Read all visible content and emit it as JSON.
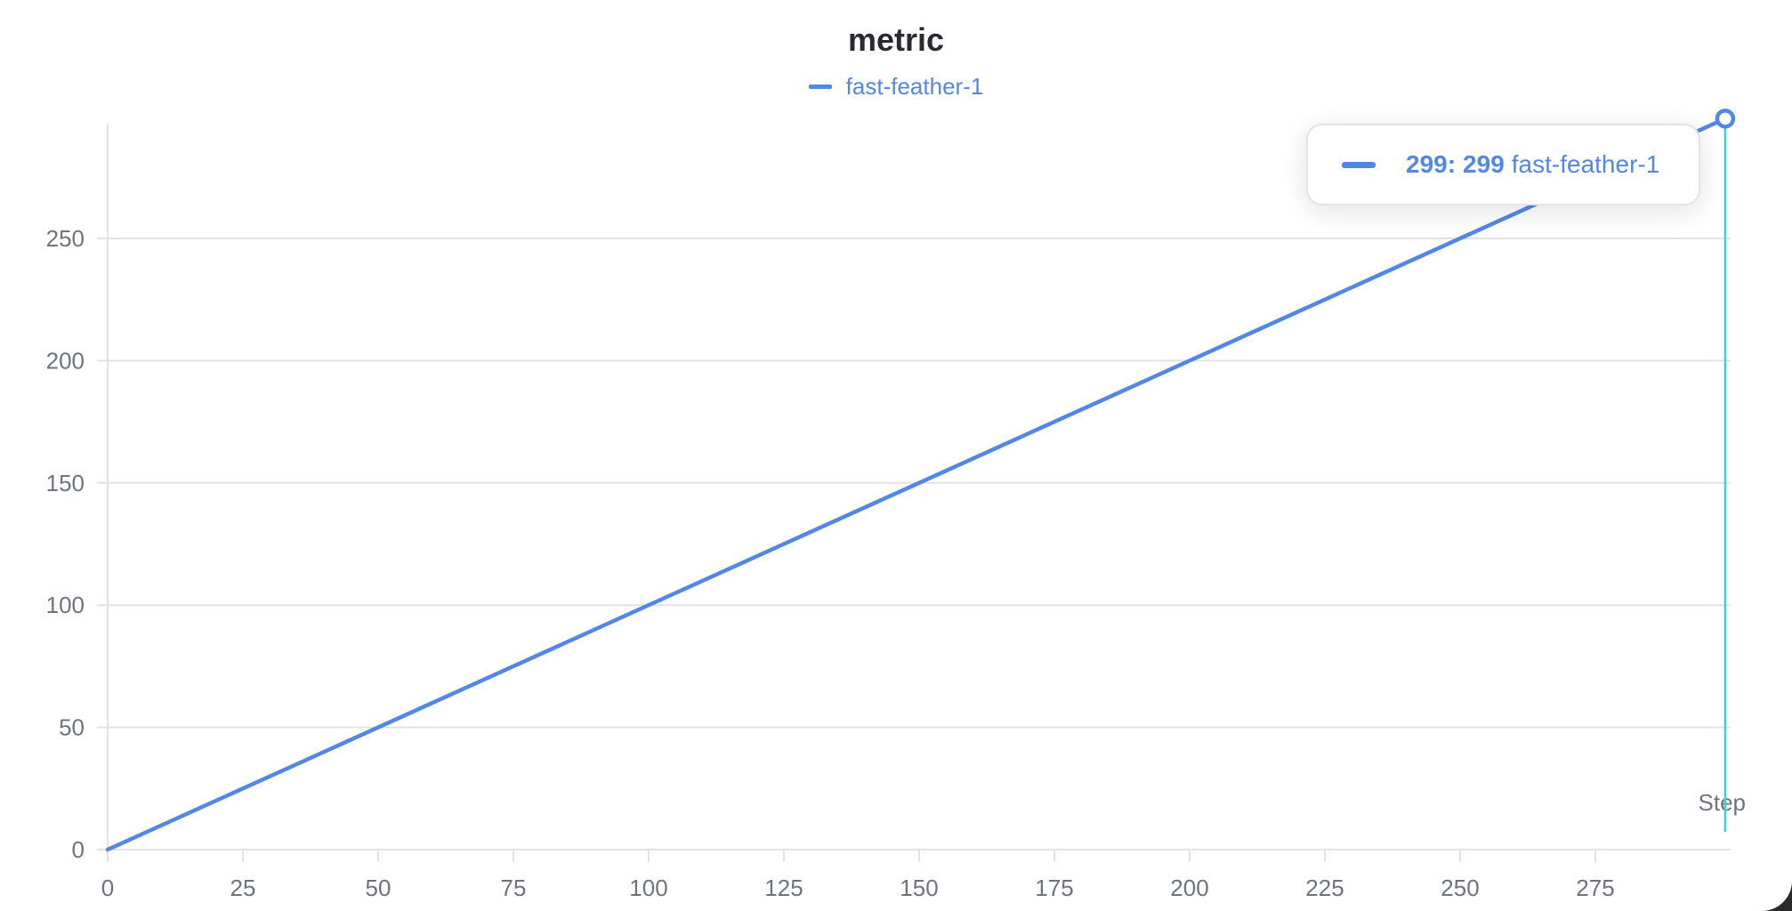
{
  "chart_data": {
    "type": "line",
    "title": "metric",
    "xlabel": "Step",
    "ylabel": "",
    "xlim": [
      0,
      300
    ],
    "ylim": [
      0,
      300
    ],
    "x_ticks": [
      0,
      25,
      50,
      75,
      100,
      125,
      150,
      175,
      200,
      225,
      250,
      275
    ],
    "y_ticks": [
      0,
      50,
      100,
      150,
      200,
      250
    ],
    "grid": "horizontal",
    "legend_placement": "top-center",
    "series": [
      {
        "name": "fast-feather-1",
        "color": "#5387e5",
        "x": [
          0,
          299
        ],
        "y": [
          0,
          299
        ],
        "note_type": "linear y = x for every step 0..299"
      }
    ],
    "hover": {
      "step": 299,
      "value": "299",
      "label_value": "299:",
      "label_series": "fast-feather-1",
      "line_color": "#3fd0d6"
    }
  }
}
